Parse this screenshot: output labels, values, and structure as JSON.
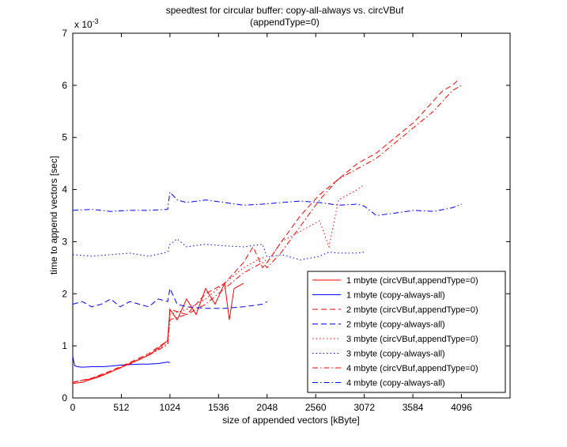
{
  "chart_data": {
    "type": "line",
    "title": "speedtest for circular buffer: copy-all-always vs. circVBuf",
    "subtitle": "(appendType=0)",
    "xlabel": "size of appended vectors [kByte]",
    "ylabel": "time to append vectors [sec]",
    "y_multiplier": "x 10",
    "y_exponent": "-3",
    "xlim": [
      0,
      4608
    ],
    "ylim": [
      0,
      7
    ],
    "xticks": [
      0,
      512,
      1024,
      1536,
      2048,
      2560,
      3072,
      3584,
      4096
    ],
    "yticks": [
      0,
      1,
      2,
      3,
      4,
      5,
      6,
      7
    ],
    "grid": false,
    "legend_position": "bottom-right",
    "series": [
      {
        "name": "1 mbyte (circVBuf,appendType=0)",
        "color": "#ff0000",
        "dash": "solid",
        "x": [
          0,
          100,
          200,
          300,
          400,
          500,
          600,
          700,
          800,
          900,
          1000,
          1024,
          1100,
          1200,
          1300,
          1400,
          1500,
          1600,
          1650,
          1700,
          1800
        ],
        "y": [
          0.28,
          0.3,
          0.36,
          0.42,
          0.5,
          0.58,
          0.66,
          0.74,
          0.82,
          0.95,
          1.1,
          1.7,
          1.5,
          1.9,
          1.6,
          2.1,
          1.8,
          2.2,
          1.5,
          2.1,
          2.2
        ]
      },
      {
        "name": "1 mbyte (copy-always-all)",
        "color": "#0000ff",
        "dash": "solid",
        "x": [
          0,
          20,
          50,
          100,
          200,
          300,
          400,
          500,
          600,
          700,
          800,
          900,
          1000,
          1024
        ],
        "y": [
          0.8,
          0.62,
          0.6,
          0.59,
          0.6,
          0.6,
          0.61,
          0.63,
          0.64,
          0.65,
          0.65,
          0.66,
          0.69,
          0.68
        ]
      },
      {
        "name": "2 mbyte (circVBuf,appendType=0)",
        "color": "#ff0000",
        "dash": "dashed",
        "x": [
          0,
          200,
          400,
          600,
          800,
          1000,
          1024,
          1200,
          1400,
          1600,
          1800,
          1900,
          2000,
          2048,
          2200,
          2400,
          2500,
          2600,
          2800,
          3000,
          3200,
          3400,
          3600,
          3800,
          3900,
          4000,
          4060
        ],
        "y": [
          0.3,
          0.38,
          0.52,
          0.68,
          0.85,
          1.1,
          1.7,
          1.6,
          2.0,
          2.2,
          2.6,
          2.9,
          2.5,
          2.6,
          3.0,
          3.5,
          3.7,
          3.9,
          4.2,
          4.5,
          4.7,
          5.0,
          5.3,
          5.7,
          5.9,
          6.0,
          6.1
        ]
      },
      {
        "name": "2 mbyte (copy-always-all)",
        "color": "#0000ff",
        "dash": "dashed",
        "x": [
          0,
          100,
          200,
          300,
          400,
          500,
          600,
          700,
          800,
          900,
          1000,
          1024,
          1100,
          1200,
          1400,
          1600,
          1800,
          2000,
          2048
        ],
        "y": [
          1.8,
          1.85,
          1.75,
          1.8,
          1.9,
          1.75,
          1.85,
          1.8,
          1.75,
          1.9,
          1.85,
          2.1,
          1.8,
          1.75,
          1.72,
          1.72,
          1.75,
          1.8,
          1.85
        ]
      },
      {
        "name": "3 mbyte (circVBuf,appendType=0)",
        "color": "#ff0000",
        "dash": "dotted",
        "x": [
          0,
          200,
          400,
          600,
          800,
          1000,
          1024,
          1200,
          1400,
          1600,
          1800,
          2000,
          2048,
          2200,
          2400,
          2600,
          2700,
          2800,
          3000,
          3072
        ],
        "y": [
          0.3,
          0.37,
          0.5,
          0.66,
          0.83,
          1.05,
          1.6,
          1.7,
          1.9,
          2.2,
          2.5,
          2.7,
          2.6,
          3.0,
          3.2,
          3.4,
          2.9,
          3.8,
          4.0,
          4.1
        ]
      },
      {
        "name": "3 mbyte (copy-always-all)",
        "color": "#0000ff",
        "dash": "dotted",
        "x": [
          0,
          200,
          400,
          600,
          800,
          1000,
          1024,
          1100,
          1200,
          1400,
          1600,
          1800,
          2000,
          2048,
          2200,
          2400,
          2600,
          2700,
          2800,
          3000,
          3072
        ],
        "y": [
          2.75,
          2.72,
          2.75,
          2.78,
          2.72,
          2.8,
          2.95,
          3.05,
          2.9,
          2.95,
          2.92,
          2.9,
          2.95,
          2.7,
          2.75,
          2.65,
          2.72,
          2.8,
          2.78,
          2.78,
          2.8
        ]
      },
      {
        "name": "4 mbyte (circVBuf,appendType=0)",
        "color": "#ff0000",
        "dash": "dashdot",
        "x": [
          0,
          200,
          400,
          600,
          800,
          1000,
          1024,
          1200,
          1400,
          1600,
          1800,
          2000,
          2048,
          2200,
          2400,
          2600,
          2800,
          3000,
          3200,
          3400,
          3600,
          3800,
          4000,
          4096
        ],
        "y": [
          0.3,
          0.37,
          0.5,
          0.65,
          0.82,
          1.02,
          1.5,
          1.6,
          1.8,
          2.1,
          2.4,
          2.6,
          2.5,
          2.8,
          3.3,
          3.8,
          4.2,
          4.4,
          4.6,
          4.9,
          5.2,
          5.5,
          5.9,
          6.0
        ]
      },
      {
        "name": "4 mbyte (copy-always-all)",
        "color": "#0000ff",
        "dash": "dashdot",
        "x": [
          0,
          200,
          400,
          600,
          800,
          1000,
          1024,
          1100,
          1200,
          1400,
          1600,
          1800,
          2000,
          2200,
          2400,
          2600,
          2800,
          3000,
          3072,
          3200,
          3400,
          3600,
          3800,
          4000,
          4096
        ],
        "y": [
          3.6,
          3.62,
          3.58,
          3.6,
          3.6,
          3.62,
          3.95,
          3.8,
          3.75,
          3.8,
          3.75,
          3.7,
          3.72,
          3.75,
          3.78,
          3.75,
          3.7,
          3.72,
          3.68,
          3.5,
          3.55,
          3.6,
          3.58,
          3.65,
          3.72
        ]
      }
    ]
  }
}
